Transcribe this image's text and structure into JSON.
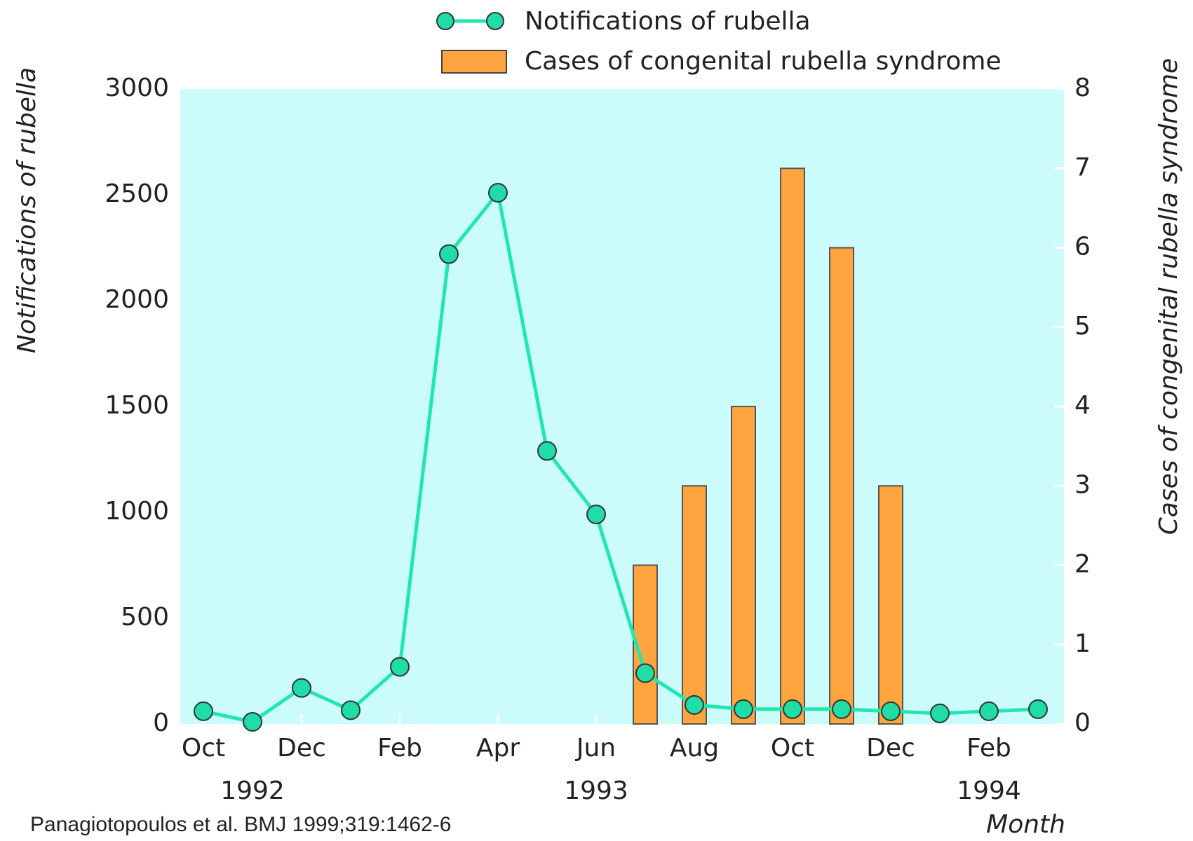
{
  "chart_data": {
    "type": "line_bar",
    "categories": [
      "Oct",
      null,
      "Dec",
      null,
      "Feb",
      null,
      "Apr",
      null,
      "Jun",
      null,
      "Aug",
      null,
      "Oct",
      null,
      "Dec",
      null,
      "Feb",
      null
    ],
    "year_labels": [
      "1992",
      "1993",
      "1994"
    ],
    "series": [
      {
        "name": "Notifications of rubella",
        "type": "line",
        "color": "#22e6b0",
        "marker_color": "#20dca6",
        "values": [
          60,
          10,
          170,
          65,
          270,
          2220,
          2510,
          1290,
          990,
          240,
          90,
          70,
          70,
          70,
          60,
          50,
          60,
          70
        ]
      },
      {
        "name": "Cases of congenital rubella syndrome",
        "type": "bar",
        "axis": "y2",
        "color": "#ffa53f",
        "values": [
          null,
          null,
          null,
          null,
          null,
          null,
          null,
          null,
          null,
          2,
          3,
          4,
          7,
          6,
          3,
          null,
          null,
          null
        ]
      }
    ],
    "ylabel": "Notifications of rubella",
    "y2label": "Cases of congenital rubella syndrome",
    "xlabel": "Month",
    "ylim": [
      0,
      3000
    ],
    "yticks": [
      0,
      500,
      1000,
      1500,
      2000,
      2500,
      3000
    ],
    "y2lim": [
      0,
      8
    ],
    "y2ticks": [
      0,
      1,
      2,
      3,
      4,
      5,
      6,
      7,
      8
    ],
    "plot_background": "#ccfbfb",
    "grid": false
  },
  "source": "Panagiotopoulos et al. BMJ 1999;319:1462-6"
}
